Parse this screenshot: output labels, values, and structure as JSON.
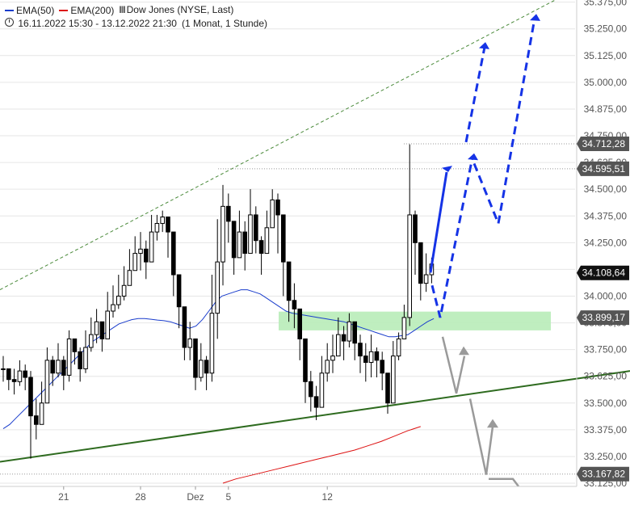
{
  "legend": {
    "ema50": {
      "label": "EMA(50)",
      "color": "#1a3dcc"
    },
    "ema200": {
      "label": "EMA(200)",
      "color": "#dd1111"
    },
    "instrument": "Dow Jones (NYSE, Last)",
    "wave_icon": "candles-icon",
    "range": "16.11.2022 15:30 - 13.12.2022 21:30",
    "interval": "(1 Monat, 1 Stunde)"
  },
  "chart_data": {
    "type": "candlestick",
    "y_ticks": [
      "35.375,00",
      "35.250,00",
      "35.125,00",
      "35.000,00",
      "34.875,00",
      "34.750,00",
      "34.625,00",
      "34.500,00",
      "34.375,00",
      "34.250,00",
      "34.125,00",
      "34.000,00",
      "33.875,00",
      "33.750,00",
      "33.625,00",
      "33.500,00",
      "33.375,00",
      "33.250,00",
      "33.125,00"
    ],
    "y_tick_values": [
      35375,
      35250,
      35125,
      35000,
      34875,
      34750,
      34625,
      34500,
      34375,
      34250,
      34125,
      34000,
      33875,
      33750,
      33625,
      33500,
      33375,
      33250,
      33125
    ],
    "ylim": [
      33110,
      35385
    ],
    "x_ticks": [
      {
        "label": "21",
        "idx": 11
      },
      {
        "label": "28",
        "idx": 25
      },
      {
        "label": "Dez",
        "idx": 35
      },
      {
        "label": "5",
        "idx": 41
      },
      {
        "label": "12",
        "idx": 59
      }
    ],
    "price_labels": [
      {
        "value": 34712.28,
        "text": "34.712,28",
        "color": "#555555",
        "ref_line": true
      },
      {
        "value": 34595.51,
        "text": "34.595,51",
        "color": "#555555",
        "ref_line": true
      },
      {
        "value": 34108.64,
        "text": "34.108,64",
        "color": "#111111",
        "ref_line": false
      },
      {
        "value": 33899.17,
        "text": "33.899,17",
        "color": "#555555",
        "ref_line": false
      },
      {
        "value": 33167.82,
        "text": "33.167,82",
        "color": "#555555",
        "ref_line": true
      }
    ],
    "closes": [
      33660,
      33610,
      33600,
      33650,
      33620,
      33440,
      33400,
      33500,
      33700,
      33640,
      33700,
      33630,
      33800,
      33740,
      33660,
      33760,
      33820,
      33880,
      33800,
      33930,
      33960,
      34000,
      34050,
      34120,
      34200,
      34220,
      34160,
      34300,
      34340,
      34370,
      34300,
      34100,
      33950,
      33760,
      33800,
      33620,
      33700,
      33640,
      33920,
      34160,
      34420,
      34350,
      34180,
      34300,
      34200,
      34380,
      34260,
      34200,
      34320,
      34450,
      34380,
      34160,
      33980,
      33940,
      33800,
      33600,
      33530,
      33480,
      33640,
      33700,
      33720,
      33820,
      33790,
      33880,
      33780,
      33720,
      33690,
      33740,
      33700,
      33640,
      33500,
      33720,
      33800,
      33900,
      34380,
      34250,
      34060,
      34100,
      34150
    ],
    "candle_ranges": [
      [
        33600,
        33720
      ],
      [
        33560,
        33660
      ],
      [
        33540,
        33660
      ],
      [
        33580,
        33700
      ],
      [
        33560,
        33680
      ],
      [
        33240,
        33650
      ],
      [
        33330,
        33520
      ],
      [
        33420,
        33600
      ],
      [
        33500,
        33760
      ],
      [
        33580,
        33720
      ],
      [
        33620,
        33780
      ],
      [
        33560,
        33720
      ],
      [
        33600,
        33840
      ],
      [
        33680,
        33800
      ],
      [
        33600,
        33760
      ],
      [
        33640,
        33840
      ],
      [
        33740,
        33900
      ],
      [
        33780,
        33940
      ],
      [
        33740,
        33880
      ],
      [
        33860,
        34020
      ],
      [
        33900,
        34050
      ],
      [
        33940,
        34100
      ],
      [
        33980,
        34140
      ],
      [
        34060,
        34220
      ],
      [
        34120,
        34280
      ],
      [
        34120,
        34300
      ],
      [
        34080,
        34260
      ],
      [
        34240,
        34380
      ],
      [
        34260,
        34380
      ],
      [
        34300,
        34400
      ],
      [
        34180,
        34360
      ],
      [
        34000,
        34240
      ],
      [
        33850,
        34080
      ],
      [
        33700,
        33920
      ],
      [
        33700,
        33880
      ],
      [
        33560,
        33760
      ],
      [
        33600,
        33780
      ],
      [
        33560,
        33720
      ],
      [
        33600,
        34100
      ],
      [
        33800,
        34360
      ],
      [
        34050,
        34520
      ],
      [
        34250,
        34480
      ],
      [
        34100,
        34300
      ],
      [
        34200,
        34400
      ],
      [
        34120,
        34350
      ],
      [
        34300,
        34500
      ],
      [
        34200,
        34420
      ],
      [
        34100,
        34280
      ],
      [
        34200,
        34400
      ],
      [
        34380,
        34500
      ],
      [
        34200,
        34480
      ],
      [
        34000,
        34260
      ],
      [
        33880,
        34080
      ],
      [
        33850,
        34060
      ],
      [
        33700,
        33920
      ],
      [
        33500,
        33800
      ],
      [
        33460,
        33650
      ],
      [
        33420,
        33580
      ],
      [
        33520,
        33720
      ],
      [
        33600,
        33780
      ],
      [
        33640,
        33820
      ],
      [
        33720,
        33900
      ],
      [
        33700,
        33860
      ],
      [
        33760,
        33920
      ],
      [
        33700,
        33880
      ],
      [
        33640,
        33820
      ],
      [
        33600,
        33780
      ],
      [
        33620,
        33820
      ],
      [
        33620,
        33760
      ],
      [
        33560,
        33740
      ],
      [
        33450,
        33640
      ],
      [
        33600,
        33790
      ],
      [
        33700,
        33830
      ],
      [
        33800,
        33960
      ],
      [
        33860,
        34710
      ],
      [
        34100,
        34400
      ],
      [
        33980,
        34240
      ],
      [
        34020,
        34200
      ],
      [
        34060,
        34180
      ]
    ],
    "ema50": [
      33380,
      33400,
      33430,
      33460,
      33490,
      33520,
      33550,
      33580,
      33610,
      33640,
      33670,
      33700,
      33730,
      33760,
      33790,
      33810,
      33830,
      33850,
      33870,
      33880,
      33890,
      33895,
      33895,
      33892,
      33888,
      33885,
      33880,
      33870,
      33860,
      33850,
      33860,
      33890,
      33930,
      33970,
      34000,
      34010,
      34020,
      34030,
      34030,
      34020,
      34010,
      33990,
      33970,
      33950,
      33930,
      33920,
      33915,
      33910,
      33905,
      33900,
      33895,
      33890,
      33885,
      33880,
      33870,
      33860,
      33850,
      33840,
      33830,
      33820,
      33810,
      33810,
      33815,
      33820,
      33840,
      33860,
      33880,
      33895
    ],
    "ema200": [
      33125,
      33145,
      33160,
      33175,
      33190,
      33205,
      33220,
      33235,
      33250,
      33265,
      33280,
      33300,
      33320,
      33345,
      33370,
      33390
    ],
    "series_colors": {
      "candle": "#000000",
      "ema50": "#1a3dcc",
      "ema200": "#dd1111"
    }
  },
  "annotations": {
    "support_zone": {
      "y_low": 33870,
      "y_high": 33905,
      "color": "#b8ecb8"
    },
    "upper_channel_color": "#4a8a3a",
    "lower_channel_color": "#2e6b1f",
    "forecast_color": "#1533e6",
    "bear_color": "#9a9a9a"
  }
}
